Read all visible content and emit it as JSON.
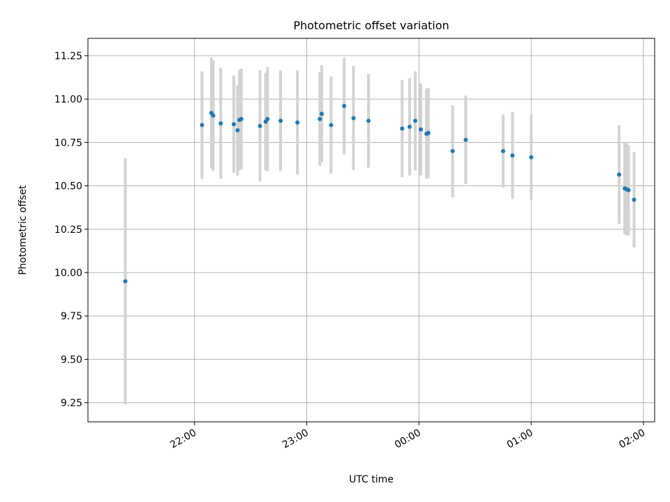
{
  "chart_data": {
    "type": "scatter",
    "title": "Photometric offset variation",
    "xlabel": "UTC time",
    "ylabel": "Photometric offset",
    "grid": true,
    "x_is_time": true,
    "xlim": [
      "21:03",
      "02:06"
    ],
    "ylim": [
      9.14,
      11.35
    ],
    "xticks": [
      {
        "label": "22:00",
        "time": "22:00"
      },
      {
        "label": "23:00",
        "time": "23:00"
      },
      {
        "label": "00:00",
        "time": "00:00"
      },
      {
        "label": "01:00",
        "time": "01:00"
      },
      {
        "label": "02:00",
        "time": "02:00"
      }
    ],
    "yticks": [
      9.25,
      9.5,
      9.75,
      10.0,
      10.25,
      10.5,
      10.75,
      11.0,
      11.25
    ],
    "colors": {
      "marker": "#1f77b4",
      "errorbar": "#d3d3d3",
      "grid": "#b0b0b0"
    },
    "series": [
      {
        "points": [
          {
            "time": "21:23",
            "y": 9.95,
            "err": 0.71
          },
          {
            "time": "22:04",
            "y": 10.85,
            "err": 0.31
          },
          {
            "time": "22:09",
            "y": 10.92,
            "err": 0.32
          },
          {
            "time": "22:10",
            "y": 10.905,
            "err": 0.32
          },
          {
            "time": "22:14",
            "y": 10.86,
            "err": 0.32
          },
          {
            "time": "22:21",
            "y": 10.855,
            "err": 0.28
          },
          {
            "time": "22:23",
            "y": 10.82,
            "err": 0.26
          },
          {
            "time": "22:24",
            "y": 10.88,
            "err": 0.29
          },
          {
            "time": "22:25",
            "y": 10.885,
            "err": 0.29
          },
          {
            "time": "22:35",
            "y": 10.845,
            "err": 0.32
          },
          {
            "time": "22:38",
            "y": 10.87,
            "err": 0.28
          },
          {
            "time": "22:39",
            "y": 10.885,
            "err": 0.3
          },
          {
            "time": "22:46",
            "y": 10.875,
            "err": 0.29
          },
          {
            "time": "22:55",
            "y": 10.865,
            "err": 0.3
          },
          {
            "time": "23:07",
            "y": 10.885,
            "err": 0.27
          },
          {
            "time": "23:08",
            "y": 10.915,
            "err": 0.28
          },
          {
            "time": "23:13",
            "y": 10.85,
            "err": 0.28
          },
          {
            "time": "23:20",
            "y": 10.96,
            "err": 0.28
          },
          {
            "time": "23:25",
            "y": 10.89,
            "err": 0.3
          },
          {
            "time": "23:33",
            "y": 10.875,
            "err": 0.27
          },
          {
            "time": "23:51",
            "y": 10.83,
            "err": 0.28
          },
          {
            "time": "23:55",
            "y": 10.84,
            "err": 0.28
          },
          {
            "time": "23:58",
            "y": 10.875,
            "err": 0.285
          },
          {
            "time": "00:01",
            "y": 10.825,
            "err": 0.265
          },
          {
            "time": "00:04",
            "y": 10.8,
            "err": 0.26
          },
          {
            "time": "00:05",
            "y": 10.805,
            "err": 0.26
          },
          {
            "time": "00:18",
            "y": 10.7,
            "err": 0.265
          },
          {
            "time": "00:25",
            "y": 10.765,
            "err": 0.255
          },
          {
            "time": "00:45",
            "y": 10.7,
            "err": 0.21
          },
          {
            "time": "00:50",
            "y": 10.675,
            "err": 0.25
          },
          {
            "time": "01:00",
            "y": 10.665,
            "err": 0.245
          },
          {
            "time": "01:47",
            "y": 10.565,
            "err": 0.285
          },
          {
            "time": "01:50",
            "y": 10.485,
            "err": 0.265
          },
          {
            "time": "01:51",
            "y": 10.48,
            "err": 0.265
          },
          {
            "time": "01:52",
            "y": 10.475,
            "err": 0.26
          },
          {
            "time": "01:55",
            "y": 10.42,
            "err": 0.275
          }
        ]
      }
    ]
  }
}
